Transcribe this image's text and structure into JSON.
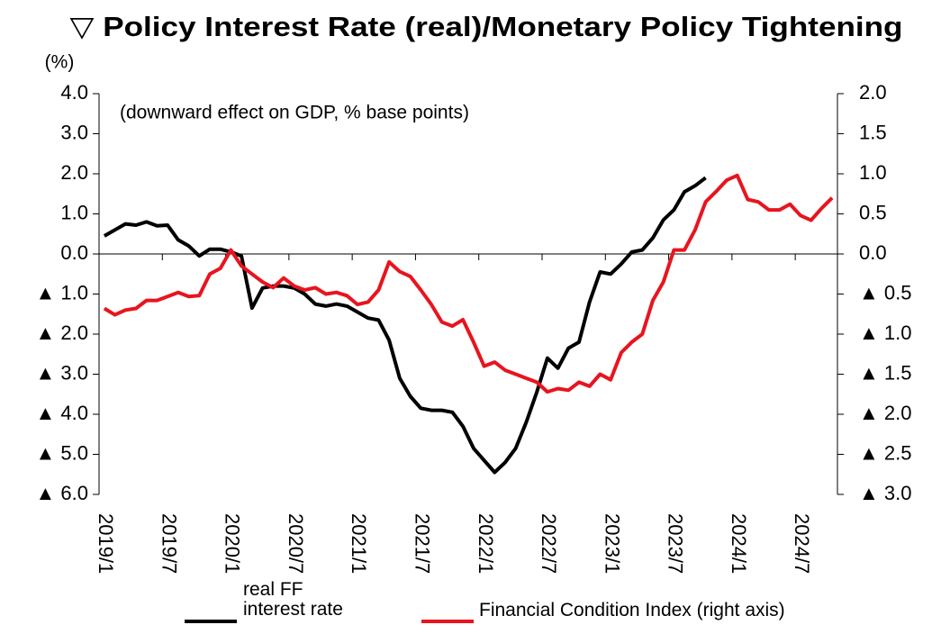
{
  "chart_data": {
    "type": "line",
    "title": "▽ Policy Interest Rate (real)/Monetary Policy Tightening",
    "y_label": "(%)",
    "annotation": "(downward effect on GDP, % base points)",
    "categories": [
      "2019/1",
      null,
      null,
      null,
      null,
      null,
      "2019/7",
      null,
      null,
      null,
      null,
      null,
      "2020/1",
      null,
      null,
      null,
      null,
      null,
      "2020/7",
      null,
      null,
      null,
      null,
      null,
      "2021/1",
      null,
      null,
      null,
      null,
      null,
      "2021/7",
      null,
      null,
      null,
      null,
      null,
      "2022/1",
      null,
      null,
      null,
      null,
      null,
      "2022/7",
      null,
      null,
      null,
      null,
      null,
      "2023/1",
      null,
      null,
      null,
      null,
      null,
      "2023/7",
      null,
      null,
      null,
      null,
      null,
      "2024/1",
      null,
      null,
      null,
      null,
      null,
      "2024/7",
      null,
      null,
      null
    ],
    "series": [
      {
        "name": "real FF interest rate",
        "color": "#000000",
        "axis": "y",
        "values": [
          0.45,
          0.6,
          0.75,
          0.72,
          0.8,
          0.7,
          0.72,
          0.35,
          0.2,
          -0.05,
          0.12,
          0.12,
          0.05,
          -0.05,
          -1.35,
          -0.85,
          -0.8,
          -0.8,
          -0.85,
          -1.0,
          -1.25,
          -1.3,
          -1.25,
          -1.3,
          -1.45,
          -1.6,
          -1.65,
          -2.15,
          -3.1,
          -3.55,
          -3.85,
          -3.9,
          -3.9,
          -3.95,
          -4.3,
          -4.85,
          -5.15,
          -5.45,
          -5.2,
          -4.85,
          -4.2,
          -3.45,
          -2.6,
          -2.85,
          -2.35,
          -2.2,
          -1.2,
          -0.45,
          -0.5,
          -0.25,
          0.05,
          0.1,
          0.4,
          0.85,
          1.1,
          1.55,
          1.7,
          1.9,
          null,
          null,
          null,
          null,
          null,
          null,
          null,
          null,
          null,
          null,
          null,
          null
        ]
      },
      {
        "name": "Financial Condition Index (right axis)",
        "color": "#e8141e",
        "axis": "y2",
        "values": [
          -0.68,
          -0.76,
          -0.7,
          -0.68,
          -0.58,
          -0.58,
          -0.53,
          -0.48,
          -0.53,
          -0.52,
          -0.25,
          -0.18,
          0.05,
          -0.15,
          -0.25,
          -0.35,
          -0.42,
          -0.3,
          -0.4,
          -0.45,
          -0.42,
          -0.5,
          -0.48,
          -0.52,
          -0.63,
          -0.6,
          -0.45,
          -0.1,
          -0.22,
          -0.28,
          -0.45,
          -0.63,
          -0.85,
          -0.9,
          -0.82,
          -1.1,
          -1.4,
          -1.35,
          -1.45,
          -1.5,
          -1.55,
          -1.6,
          -1.72,
          -1.68,
          -1.7,
          -1.6,
          -1.65,
          -1.5,
          -1.57,
          -1.23,
          -1.1,
          -1.0,
          -0.58,
          -0.35,
          0.05,
          0.05,
          0.3,
          0.65,
          0.78,
          0.92,
          0.98,
          0.68,
          0.65,
          0.55,
          0.55,
          0.62,
          0.48,
          0.42,
          0.57,
          0.7
        ]
      }
    ],
    "ylim": [
      -6,
      4
    ],
    "yticks": [
      {
        "value": 4,
        "label": "4.0"
      },
      {
        "value": 3,
        "label": "3.0"
      },
      {
        "value": 2,
        "label": "2.0"
      },
      {
        "value": 1,
        "label": "1.0"
      },
      {
        "value": 0,
        "label": "0.0"
      },
      {
        "value": -1,
        "label": "▲ 1.0"
      },
      {
        "value": -2,
        "label": "▲ 2.0"
      },
      {
        "value": -3,
        "label": "▲ 3.0"
      },
      {
        "value": -4,
        "label": "▲ 4.0"
      },
      {
        "value": -5,
        "label": "▲ 5.0"
      },
      {
        "value": -6,
        "label": "▲ 6.0"
      }
    ],
    "y2lim": [
      -3,
      2
    ],
    "y2ticks": [
      {
        "value": 2,
        "label": "2.0"
      },
      {
        "value": 1.5,
        "label": "1.5"
      },
      {
        "value": 1,
        "label": "1.0"
      },
      {
        "value": 0.5,
        "label": "0.5"
      },
      {
        "value": 0,
        "label": "0.0"
      },
      {
        "value": -0.5,
        "label": "▲ 0.5"
      },
      {
        "value": -1,
        "label": "▲ 1.0"
      },
      {
        "value": -1.5,
        "label": "▲ 1.5"
      },
      {
        "value": -2,
        "label": "▲ 2.0"
      },
      {
        "value": -2.5,
        "label": "▲ 2.5"
      },
      {
        "value": -3,
        "label": "▲ 3.0"
      }
    ],
    "grid": false,
    "legend": "bottom"
  }
}
